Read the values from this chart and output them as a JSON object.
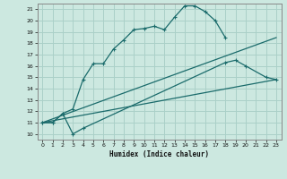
{
  "xlabel": "Humidex (Indice chaleur)",
  "xlim": [
    -0.5,
    23.5
  ],
  "ylim": [
    9.5,
    21.5
  ],
  "background_color": "#cce8e0",
  "grid_color": "#aad0c8",
  "line_color": "#1a6b6b",
  "xticks": [
    0,
    1,
    2,
    3,
    4,
    5,
    6,
    7,
    8,
    9,
    10,
    11,
    12,
    13,
    14,
    15,
    16,
    17,
    18,
    19,
    20,
    21,
    22,
    23
  ],
  "yticks": [
    10,
    11,
    12,
    13,
    14,
    15,
    16,
    17,
    18,
    19,
    20,
    21
  ],
  "line1_x": [
    0,
    1,
    2,
    3,
    4,
    5,
    6,
    7,
    8,
    9,
    10,
    11,
    12,
    13,
    14,
    15,
    16,
    17,
    18
  ],
  "line1_y": [
    11,
    11,
    11.8,
    12.2,
    14.8,
    16.2,
    16.2,
    17.5,
    18.3,
    19.2,
    19.3,
    19.5,
    19.2,
    20.3,
    21.3,
    21.3,
    20.8,
    20.0,
    18.5
  ],
  "line2_x": [
    0,
    1,
    2,
    3,
    4,
    18,
    19,
    20,
    22,
    23
  ],
  "line2_y": [
    11,
    11,
    11.8,
    10.0,
    10.5,
    16.3,
    16.5,
    16.0,
    15.0,
    14.8
  ],
  "line3_x": [
    0,
    23
  ],
  "line3_y": [
    11,
    14.8
  ],
  "line4_x": [
    0,
    23
  ],
  "line4_y": [
    11,
    18.5
  ]
}
